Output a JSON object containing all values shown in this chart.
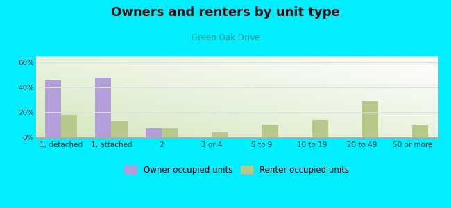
{
  "title": "Owners and renters by unit type",
  "subtitle": "Green Oak Drive",
  "categories": [
    "1, detached",
    "1, attached",
    "2",
    "3 or 4",
    "5 to 9",
    "10 to 19",
    "20 to 49",
    "50 or more"
  ],
  "owner_values": [
    46,
    48,
    7,
    0,
    0,
    0,
    0,
    0
  ],
  "renter_values": [
    18,
    13,
    7,
    4,
    10,
    14,
    29,
    10
  ],
  "owner_color": "#b39ddb",
  "renter_color": "#b5c98a",
  "background_color": "#00eeff",
  "ylim": [
    0,
    65
  ],
  "yticks": [
    0,
    20,
    40,
    60
  ],
  "yticklabels": [
    "0%",
    "20%",
    "40%",
    "60%"
  ],
  "title_fontsize": 13,
  "subtitle_fontsize": 8.5,
  "legend_fontsize": 8.5,
  "tick_fontsize": 7.5,
  "bar_width": 0.32,
  "legend_owner": "Owner occupied units",
  "legend_renter": "Renter occupied units",
  "subtitle_color": "#339988",
  "tick_color": "#333333",
  "grid_color": "#dddddd"
}
